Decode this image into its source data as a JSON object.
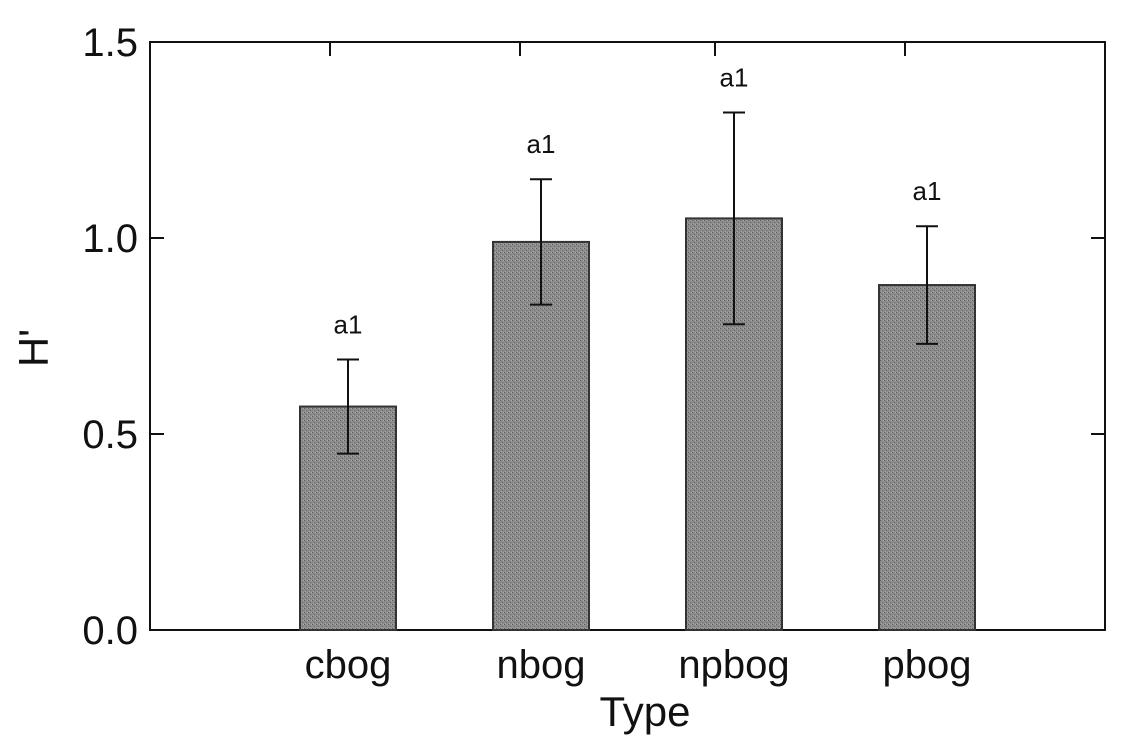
{
  "chart_data": {
    "type": "bar",
    "title": "",
    "xlabel": "Type",
    "ylabel": "H'",
    "categories": [
      "cbog",
      "nbog",
      "npbog",
      "pbog"
    ],
    "values": [
      0.57,
      0.99,
      1.05,
      0.88
    ],
    "error": [
      0.12,
      0.16,
      0.27,
      0.15
    ],
    "data_labels": [
      "a1",
      "a1",
      "a1",
      "a1"
    ],
    "ylim": [
      0.0,
      1.5
    ],
    "yticks": [
      0.0,
      0.5,
      1.0,
      1.5
    ],
    "ytick_labels": [
      "0.0",
      "0.5",
      "1.0",
      "1.5"
    ],
    "grid": false,
    "legend": "none",
    "colors": {
      "bar_fill": "#8a8a8a",
      "bar_stroke": "#333333",
      "axis": "#111111"
    }
  }
}
